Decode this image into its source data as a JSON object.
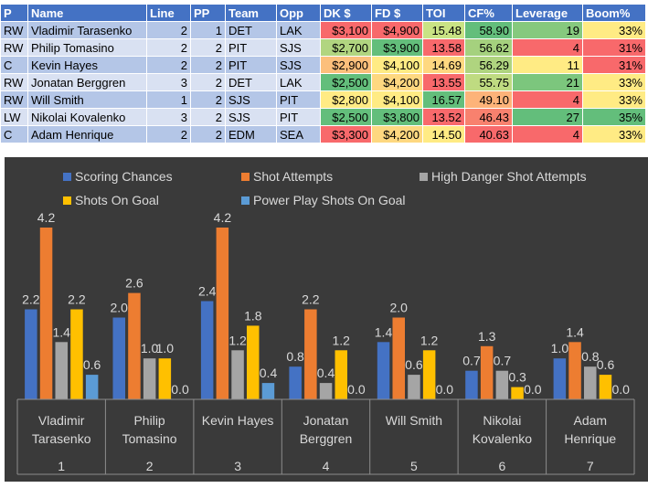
{
  "table": {
    "headers": [
      "P",
      "Name",
      "Line",
      "PP",
      "Team",
      "Opp",
      "DK $",
      "FD $",
      "TOI",
      "CF%",
      "Leverage",
      "Boom%"
    ],
    "rows": [
      {
        "pos": "RW",
        "name": "Vladimir Tarasenko",
        "line": "2",
        "pp": "1",
        "team": "DET",
        "opp": "LAK",
        "dk": "$3,100",
        "fd": "$4,900",
        "toi": "15.48",
        "cf": "58.90",
        "lev": "19",
        "boom": "33%",
        "colors": {
          "dk": "#f8696b",
          "fd": "#f8696b",
          "toi": "#c9e384",
          "cf": "#63be7b",
          "lev": "#86c97e",
          "boom": "#ffeb84"
        }
      },
      {
        "pos": "RW",
        "name": "Philip Tomasino",
        "line": "2",
        "pp": "2",
        "team": "PIT",
        "opp": "SJS",
        "dk": "$2,700",
        "fd": "$3,900",
        "toi": "13.58",
        "cf": "56.62",
        "lev": "4",
        "boom": "31%",
        "colors": {
          "dk": "#b1d580",
          "fd": "#63be7b",
          "toi": "#f8696b",
          "cf": "#a5d17e",
          "lev": "#f8696b",
          "boom": "#f8696b"
        }
      },
      {
        "pos": "C",
        "name": "Kevin Hayes",
        "line": "2",
        "pp": "2",
        "team": "PIT",
        "opp": "SJS",
        "dk": "$2,900",
        "fd": "$4,100",
        "toi": "14.69",
        "cf": "56.29",
        "lev": "11",
        "boom": "31%",
        "colors": {
          "dk": "#fcbf7b",
          "fd": "#ffeb84",
          "toi": "#fed880",
          "cf": "#afd47f",
          "lev": "#ffeb84",
          "boom": "#f8696b"
        }
      },
      {
        "pos": "RW",
        "name": "Jonatan Berggren",
        "line": "3",
        "pp": "2",
        "team": "DET",
        "opp": "LAK",
        "dk": "$2,500",
        "fd": "$4,200",
        "toi": "13.55",
        "cf": "55.75",
        "lev": "21",
        "boom": "33%",
        "colors": {
          "dk": "#63be7b",
          "fd": "#fed880",
          "toi": "#f8696b",
          "cf": "#bfdb81",
          "lev": "#7cc67d",
          "boom": "#ffeb84"
        }
      },
      {
        "pos": "RW",
        "name": "Will Smith",
        "line": "1",
        "pp": "2",
        "team": "SJS",
        "opp": "PIT",
        "dk": "$2,800",
        "fd": "$4,100",
        "toi": "16.57",
        "cf": "49.10",
        "lev": "4",
        "boom": "33%",
        "colors": {
          "dk": "#ffeb84",
          "fd": "#ffeb84",
          "toi": "#63be7b",
          "cf": "#fdb379",
          "lev": "#f8696b",
          "boom": "#ffeb84"
        }
      },
      {
        "pos": "LW",
        "name": "Nikolai Kovalenko",
        "line": "3",
        "pp": "2",
        "team": "SJS",
        "opp": "PIT",
        "dk": "$2,500",
        "fd": "$3,800",
        "toi": "13.52",
        "cf": "46.43",
        "lev": "27",
        "boom": "35%",
        "colors": {
          "dk": "#63be7b",
          "fd": "#63be7b",
          "toi": "#f8696b",
          "cf": "#f8816e",
          "lev": "#63be7b",
          "boom": "#63be7b"
        }
      },
      {
        "pos": "C",
        "name": "Adam Henrique",
        "line": "2",
        "pp": "2",
        "team": "EDM",
        "opp": "SEA",
        "dk": "$3,300",
        "fd": "$4,200",
        "toi": "14.50",
        "cf": "40.63",
        "lev": "4",
        "boom": "33%",
        "colors": {
          "dk": "#f8696b",
          "fd": "#fed880",
          "toi": "#ffeb84",
          "cf": "#f8696b",
          "lev": "#f8696b",
          "boom": "#ffeb84"
        }
      }
    ]
  },
  "chart_data": {
    "type": "bar",
    "title": "",
    "xlabel": "",
    "ylabel": "",
    "ylim": [
      0,
      4.4
    ],
    "grid": false,
    "legend": "top",
    "categories": [
      {
        "name": [
          "Vladimir",
          "Tarasenko"
        ],
        "index": "1"
      },
      {
        "name": [
          "Philip",
          "Tomasino"
        ],
        "index": "2"
      },
      {
        "name": [
          "Kevin Hayes"
        ],
        "index": "3"
      },
      {
        "name": [
          "Jonatan",
          "Berggren"
        ],
        "index": "4"
      },
      {
        "name": [
          "Will Smith"
        ],
        "index": "5"
      },
      {
        "name": [
          "Nikolai",
          "Kovalenko"
        ],
        "index": "6"
      },
      {
        "name": [
          "Adam",
          "Henrique"
        ],
        "index": "7"
      }
    ],
    "series": [
      {
        "name": "Scoring Chances",
        "color": "#4472c4",
        "values": [
          2.2,
          2.0,
          2.4,
          0.8,
          1.4,
          0.7,
          1.0
        ]
      },
      {
        "name": "Shot Attempts",
        "color": "#ed7d31",
        "values": [
          4.2,
          2.6,
          4.2,
          2.2,
          2.0,
          1.3,
          1.4
        ]
      },
      {
        "name": "High Danger Shot Attempts",
        "color": "#a5a5a5",
        "values": [
          1.4,
          1.0,
          1.2,
          0.4,
          0.6,
          0.7,
          0.8
        ]
      },
      {
        "name": "Shots On Goal",
        "color": "#ffc000",
        "values": [
          2.2,
          1.0,
          1.8,
          1.2,
          1.2,
          0.3,
          0.6
        ]
      },
      {
        "name": "Power Play Shots On Goal",
        "color": "#5b9bd5",
        "values": [
          0.6,
          0.0,
          0.4,
          0.0,
          0.0,
          0.0,
          0.0
        ]
      }
    ]
  }
}
